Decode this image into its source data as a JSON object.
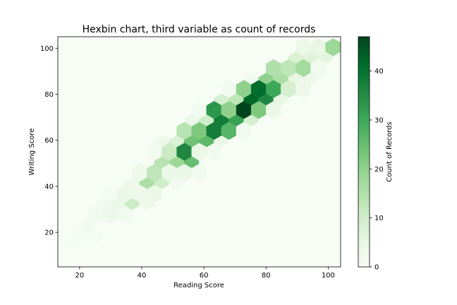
{
  "chart_data": {
    "type": "heatmap",
    "subtype": "hexbin",
    "title": "Hexbin chart, third variable as count of records",
    "xlabel": "Reading Score",
    "ylabel": "Writing Score",
    "xlim": [
      13,
      104
    ],
    "ylim": [
      5,
      105
    ],
    "xticks": [
      20,
      40,
      60,
      80,
      100
    ],
    "yticks": [
      20,
      40,
      60,
      80,
      100
    ],
    "gridsize_x": 19,
    "colormap": "Greens",
    "colorbar": {
      "label": "Count of Records",
      "min": 0,
      "max": 47,
      "ticks": [
        0,
        10,
        20,
        30,
        40
      ]
    },
    "cells": [
      [
        36,
        36,
        2
      ],
      [
        40,
        43,
        3
      ],
      [
        42,
        44,
        5
      ],
      [
        44,
        41,
        3
      ],
      [
        44,
        39,
        4
      ],
      [
        46,
        43,
        3
      ],
      [
        48,
        45,
        4
      ],
      [
        50,
        44,
        4
      ],
      [
        36,
        38,
        4
      ],
      [
        32,
        35,
        4
      ],
      [
        34,
        33,
        3
      ],
      [
        30,
        32,
        3
      ],
      [
        28,
        30,
        2
      ],
      [
        26,
        28,
        2
      ],
      [
        24,
        26,
        2
      ],
      [
        22,
        24,
        2
      ],
      [
        20,
        22,
        1
      ],
      [
        22,
        20,
        2
      ],
      [
        18,
        18,
        1
      ],
      [
        24,
        20,
        1
      ],
      [
        30,
        28,
        3
      ],
      [
        34,
        30,
        2
      ],
      [
        38,
        37,
        3
      ],
      [
        38,
        40,
        3
      ],
      [
        36,
        31,
        11
      ],
      [
        38,
        32,
        6
      ],
      [
        42,
        34,
        3
      ],
      [
        40,
        41,
        16
      ],
      [
        42,
        44,
        11
      ],
      [
        44,
        47,
        9
      ],
      [
        44,
        42,
        13
      ],
      [
        46,
        44,
        7
      ],
      [
        48,
        43,
        10
      ],
      [
        50,
        46,
        4
      ],
      [
        48,
        51,
        14
      ],
      [
        50,
        50,
        18
      ],
      [
        52,
        51,
        7
      ],
      [
        46,
        47,
        13
      ],
      [
        50,
        53,
        11
      ],
      [
        52,
        54,
        6
      ],
      [
        52,
        56,
        20
      ],
      [
        54,
        56,
        36
      ],
      [
        56,
        58,
        24
      ],
      [
        54,
        61,
        14
      ],
      [
        56,
        62,
        10
      ],
      [
        52,
        59,
        8
      ],
      [
        50,
        58,
        6
      ],
      [
        48,
        56,
        5
      ],
      [
        56,
        53,
        25
      ],
      [
        58,
        54,
        4
      ],
      [
        54,
        52,
        8
      ],
      [
        60,
        58,
        26
      ],
      [
        62,
        60,
        25
      ],
      [
        60,
        63,
        22
      ],
      [
        58,
        64,
        14
      ],
      [
        60,
        65,
        5
      ],
      [
        62,
        66,
        23
      ],
      [
        64,
        65,
        38
      ],
      [
        66,
        64,
        27
      ],
      [
        64,
        70,
        33
      ],
      [
        66,
        68,
        38
      ],
      [
        68,
        70,
        20
      ],
      [
        66,
        71,
        12
      ],
      [
        62,
        69,
        10
      ],
      [
        60,
        67,
        8
      ],
      [
        58,
        68,
        4
      ],
      [
        70,
        72,
        31
      ],
      [
        68,
        73,
        18
      ],
      [
        66,
        75,
        9
      ],
      [
        62,
        72,
        5
      ],
      [
        64,
        74,
        6
      ],
      [
        68,
        76,
        6
      ],
      [
        72,
        76,
        34
      ],
      [
        74,
        73,
        47
      ],
      [
        76,
        72,
        22
      ],
      [
        74,
        78,
        42
      ],
      [
        78,
        73,
        15
      ],
      [
        76,
        77,
        15
      ],
      [
        72,
        74,
        14
      ],
      [
        72,
        79,
        13
      ],
      [
        70,
        78,
        8
      ],
      [
        74,
        80,
        20
      ],
      [
        78,
        79,
        35
      ],
      [
        76,
        81,
        41
      ],
      [
        78,
        83,
        11
      ],
      [
        80,
        82,
        36
      ],
      [
        82,
        84,
        30
      ],
      [
        80,
        86,
        20
      ],
      [
        82,
        81,
        16
      ],
      [
        84,
        83,
        21
      ],
      [
        84,
        87,
        10
      ],
      [
        86,
        86,
        16
      ],
      [
        86,
        82,
        8
      ],
      [
        88,
        84,
        9
      ],
      [
        84,
        80,
        5
      ],
      [
        82,
        78,
        7
      ],
      [
        80,
        76,
        6
      ],
      [
        80,
        88,
        5
      ],
      [
        84,
        91,
        15
      ],
      [
        86,
        92,
        13
      ],
      [
        88,
        91,
        10
      ],
      [
        90,
        92,
        17
      ],
      [
        88,
        95,
        8
      ],
      [
        92,
        94,
        6
      ],
      [
        90,
        90,
        5
      ],
      [
        94,
        96,
        5
      ],
      [
        96,
        96,
        7
      ],
      [
        98,
        98,
        6
      ],
      [
        100,
        100,
        18
      ],
      [
        98,
        102,
        5
      ],
      [
        96,
        100,
        3
      ],
      [
        92,
        98,
        4
      ],
      [
        70,
        66,
        8
      ],
      [
        72,
        67,
        6
      ],
      [
        74,
        69,
        9
      ],
      [
        76,
        71,
        4
      ],
      [
        68,
        67,
        5
      ],
      [
        66,
        60,
        2
      ],
      [
        58,
        52,
        3
      ],
      [
        62,
        54,
        2
      ],
      [
        54,
        48,
        4
      ],
      [
        58,
        48,
        2
      ],
      [
        46,
        40,
        2
      ],
      [
        52,
        40,
        2
      ],
      [
        38,
        30,
        2
      ],
      [
        44,
        36,
        3
      ],
      [
        66,
        62,
        4
      ],
      [
        72,
        70,
        3
      ],
      [
        74,
        66,
        2
      ],
      [
        78,
        70,
        3
      ],
      [
        82,
        74,
        4
      ],
      [
        86,
        78,
        3
      ],
      [
        88,
        80,
        2
      ],
      [
        92,
        86,
        3
      ],
      [
        94,
        90,
        3
      ],
      [
        96,
        92,
        2
      ],
      [
        100,
        96,
        2
      ],
      [
        102,
        98,
        1
      ],
      [
        80,
        90,
        3
      ],
      [
        76,
        86,
        2
      ],
      [
        70,
        82,
        2
      ],
      [
        64,
        76,
        3
      ],
      [
        58,
        70,
        2
      ],
      [
        52,
        64,
        2
      ],
      [
        48,
        58,
        3
      ],
      [
        44,
        52,
        2
      ],
      [
        40,
        48,
        2
      ],
      [
        36,
        44,
        1
      ],
      [
        30,
        36,
        1
      ],
      [
        26,
        32,
        1
      ]
    ]
  }
}
